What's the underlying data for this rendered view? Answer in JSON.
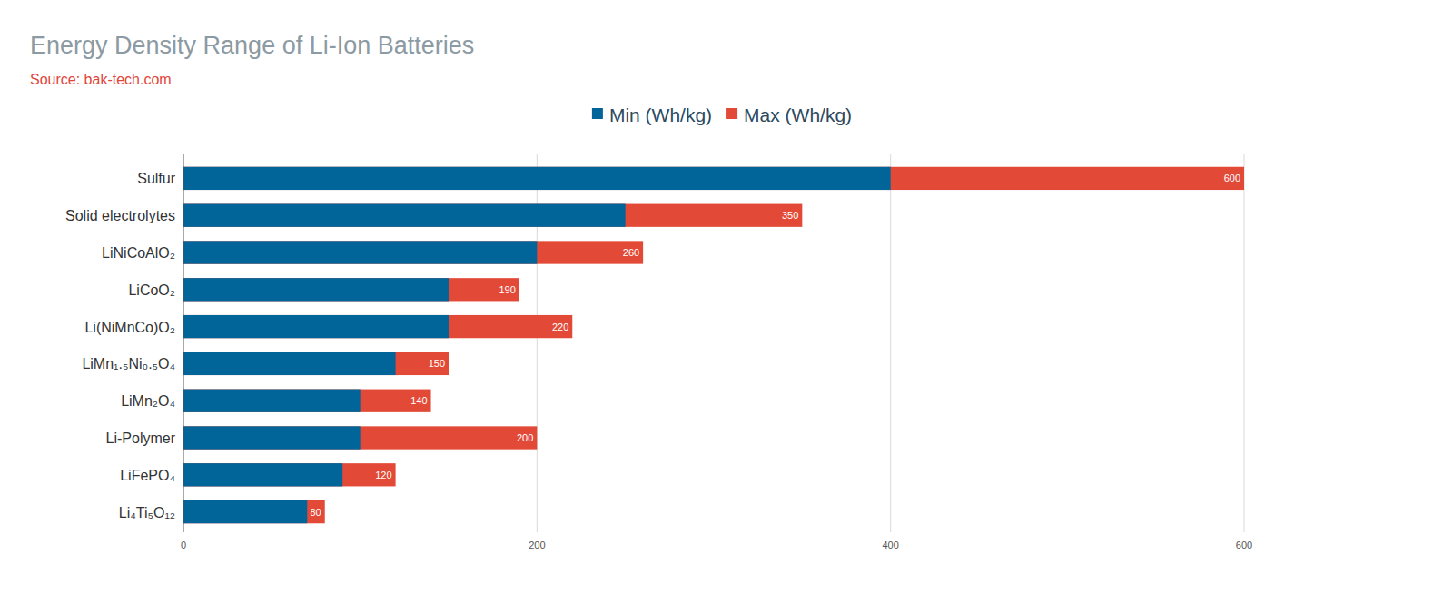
{
  "chart_data": {
    "type": "bar",
    "orientation": "horizontal",
    "stacked": false,
    "title": "Energy Density Range of Li-Ion Batteries",
    "subtitle": "Source: bak-tech.com",
    "categories": [
      "Sulfur",
      "Solid electrolytes",
      "LiNiCoAlO₂",
      "LiCoO₂",
      "Li(NiMnCo)O₂",
      "LiMn₁.₅Ni₀.₅O₄",
      "LiMn₂O₄",
      "Li-Polymer",
      "LiFePO₄",
      "Li₄Ti₅O₁₂"
    ],
    "series": [
      {
        "name": "Min  (Wh/kg)",
        "color": "#02659a",
        "values": [
          400,
          250,
          200,
          150,
          150,
          120,
          100,
          100,
          90,
          70
        ]
      },
      {
        "name": "Max (Wh/kg)",
        "color": "#e24a37",
        "values": [
          600,
          350,
          260,
          190,
          220,
          150,
          140,
          200,
          120,
          80
        ],
        "data_labels": true
      }
    ],
    "xlim": [
      0,
      600
    ],
    "xticks": [
      0,
      200,
      400,
      600
    ],
    "grid": true,
    "legend": "top"
  }
}
